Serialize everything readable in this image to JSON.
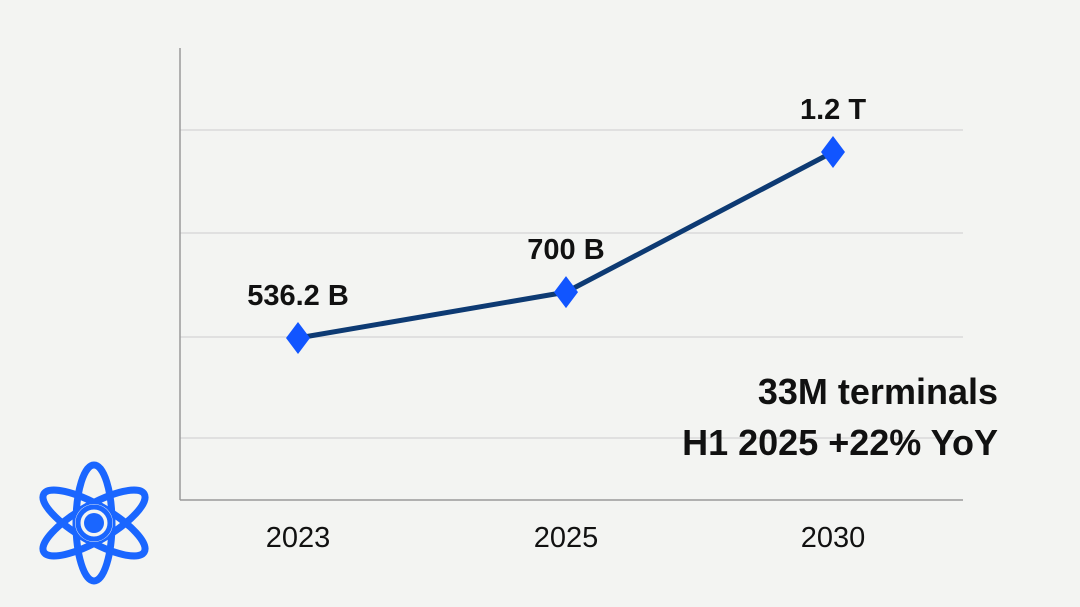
{
  "chart_data": {
    "type": "line",
    "categories": [
      "2023",
      "2025",
      "2030"
    ],
    "values": [
      536.2,
      700,
      1200
    ],
    "data_labels": [
      "536.2 B",
      "700 B",
      "1.2 T"
    ],
    "title": "",
    "xlabel": "",
    "ylabel": "",
    "y_tick_labels_shown": false,
    "grid": true,
    "ylim": [
      150,
      1400
    ],
    "colors": {
      "line": "#0d3a73",
      "marker": "#1155ff",
      "grid": "#d9d9d9",
      "axis": "#999999"
    },
    "marker": "diamond",
    "annotations": [
      "33M terminals",
      "H1 2025 +22% YoY"
    ]
  },
  "logo": {
    "icon": "atom-icon",
    "color": "#1a66ff"
  }
}
